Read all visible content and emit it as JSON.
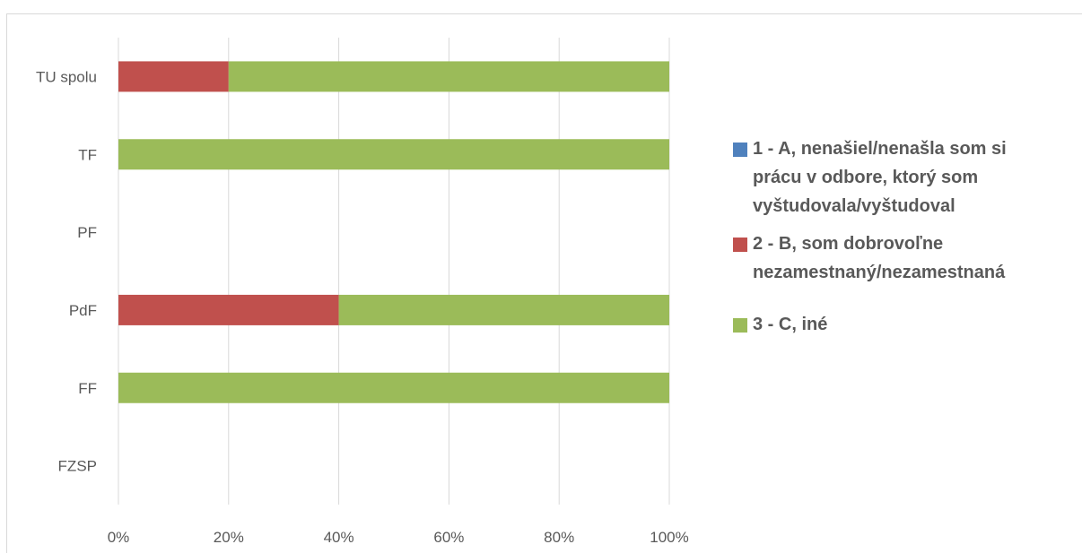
{
  "chart_data": {
    "type": "bar",
    "orientation": "horizontal",
    "stacking": "percent",
    "categories": [
      "TU spolu",
      "TF",
      "PF",
      "PdF",
      "FF",
      "FZSP"
    ],
    "series": [
      {
        "name": "1 - A, nenašiel/nenašla som si prácu v odbore, ktorý som vyštudovala/vyštudoval",
        "color": "#4f81bd",
        "values": [
          0,
          0,
          0,
          0,
          0,
          0
        ]
      },
      {
        "name": "2 - B, som dobrovoľne nezamestnaný/nezamestnaná",
        "color": "#c0504d",
        "values": [
          20,
          0,
          0,
          40,
          0,
          0
        ]
      },
      {
        "name": "3 - C, iné",
        "color": "#9bbb59",
        "values": [
          80,
          100,
          0,
          60,
          100,
          0
        ]
      }
    ],
    "xlim": [
      0,
      100
    ],
    "x_ticks": [
      "0%",
      "20%",
      "40%",
      "60%",
      "80%",
      "100%"
    ],
    "grid": true,
    "legend_position": "right"
  },
  "legend": {
    "items": [
      {
        "lines": [
          "1 - A, nenašiel/nenašla som si",
          "prácu v odbore, ktorý som",
          "vyštudovala/vyštudoval"
        ],
        "color": "#4f81bd"
      },
      {
        "lines": [
          "2 - B, som dobrovoľne",
          "nezamestnaný/nezamestnaná"
        ],
        "color": "#c0504d"
      },
      {
        "lines": [
          "3 - C, iné"
        ],
        "color": "#9bbb59"
      }
    ]
  }
}
